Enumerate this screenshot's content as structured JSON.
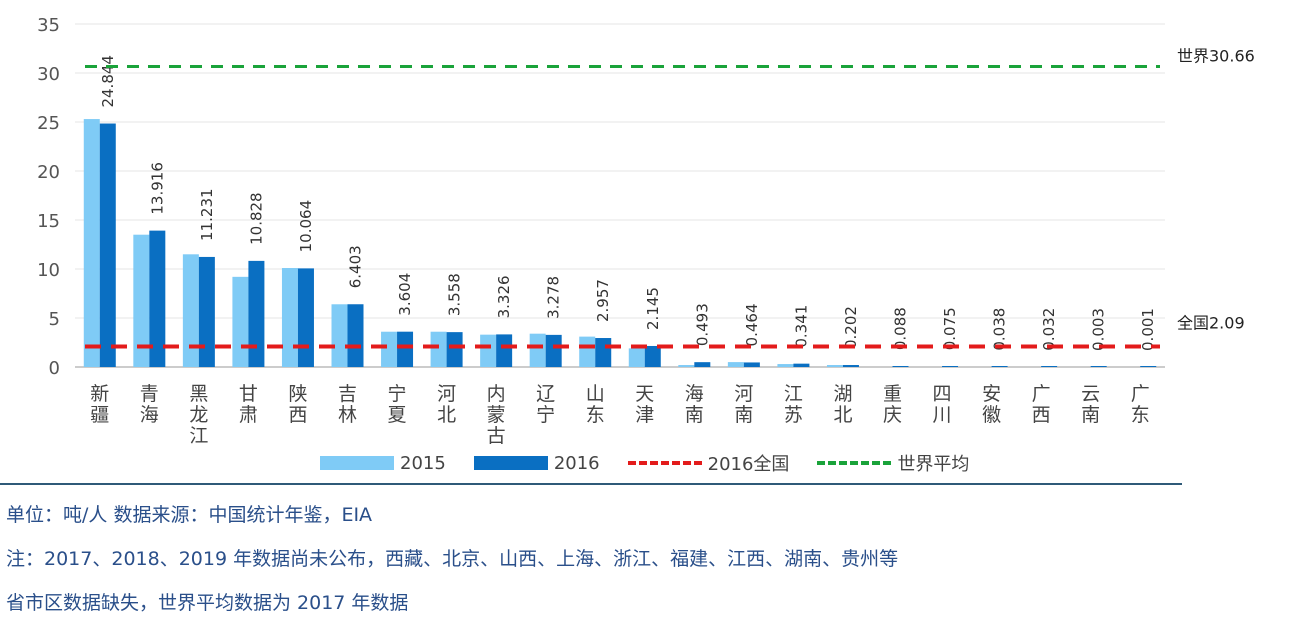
{
  "chart_data": {
    "type": "bar",
    "categories": [
      "新疆",
      "青海",
      "黑龙江",
      "甘肃",
      "陕西",
      "吉林",
      "宁夏",
      "河北",
      "内蒙古",
      "辽宁",
      "山东",
      "天津",
      "海南",
      "河南",
      "江苏",
      "湖北",
      "重庆",
      "四川",
      "安徽",
      "广西",
      "云南",
      "广东"
    ],
    "series": [
      {
        "name": "2015",
        "color": "#7fcbf6",
        "values": [
          25.3,
          13.5,
          11.5,
          9.2,
          10.1,
          6.4,
          3.6,
          3.6,
          3.3,
          3.4,
          3.1,
          1.9,
          0.2,
          0.5,
          0.3,
          0.2,
          0,
          0,
          0,
          0,
          0,
          0
        ]
      },
      {
        "name": "2016",
        "color": "#0a6fc2",
        "values": [
          24.844,
          13.916,
          11.231,
          10.828,
          10.064,
          6.403,
          3.604,
          3.558,
          3.326,
          3.278,
          2.957,
          2.145,
          0.493,
          0.464,
          0.341,
          0.202,
          0.088,
          0.075,
          0.038,
          0.032,
          0.003,
          0.001
        ]
      }
    ],
    "data_labels": [
      "24.844",
      "13.916",
      "11.231",
      "10.828",
      "10.064",
      "6.403",
      "3.604",
      "3.558",
      "3.326",
      "3.278",
      "2.957",
      "2.145",
      "0.493",
      "0.464",
      "0.341",
      "0.202",
      "0.088",
      "0.075",
      "0.038",
      "0.032",
      "0.003",
      "0.001"
    ],
    "reference_lines": [
      {
        "name": "2016全国",
        "value": 2.09,
        "label": "全国2.09",
        "color": "#e31b1b",
        "style": "dashed"
      },
      {
        "name": "世界平均",
        "value": 30.66,
        "label": "世界30.66",
        "color": "#1aa33a",
        "style": "dashed"
      }
    ],
    "yticks": [
      "0",
      "5",
      "10",
      "15",
      "20",
      "25",
      "30",
      "35"
    ],
    "ylim": [
      0,
      35
    ],
    "grid": true,
    "legend": "bottom"
  },
  "notes": {
    "line1": "单位：吨/人  数据来源：中国统计年鉴，EIA",
    "line2": "注：2017、2018、2019 年数据尚未公布，西藏、北京、山西、上海、浙江、福建、江西、湖南、贵州等",
    "line3": "省市区数据缺失，世界平均数据为 2017 年数据"
  }
}
